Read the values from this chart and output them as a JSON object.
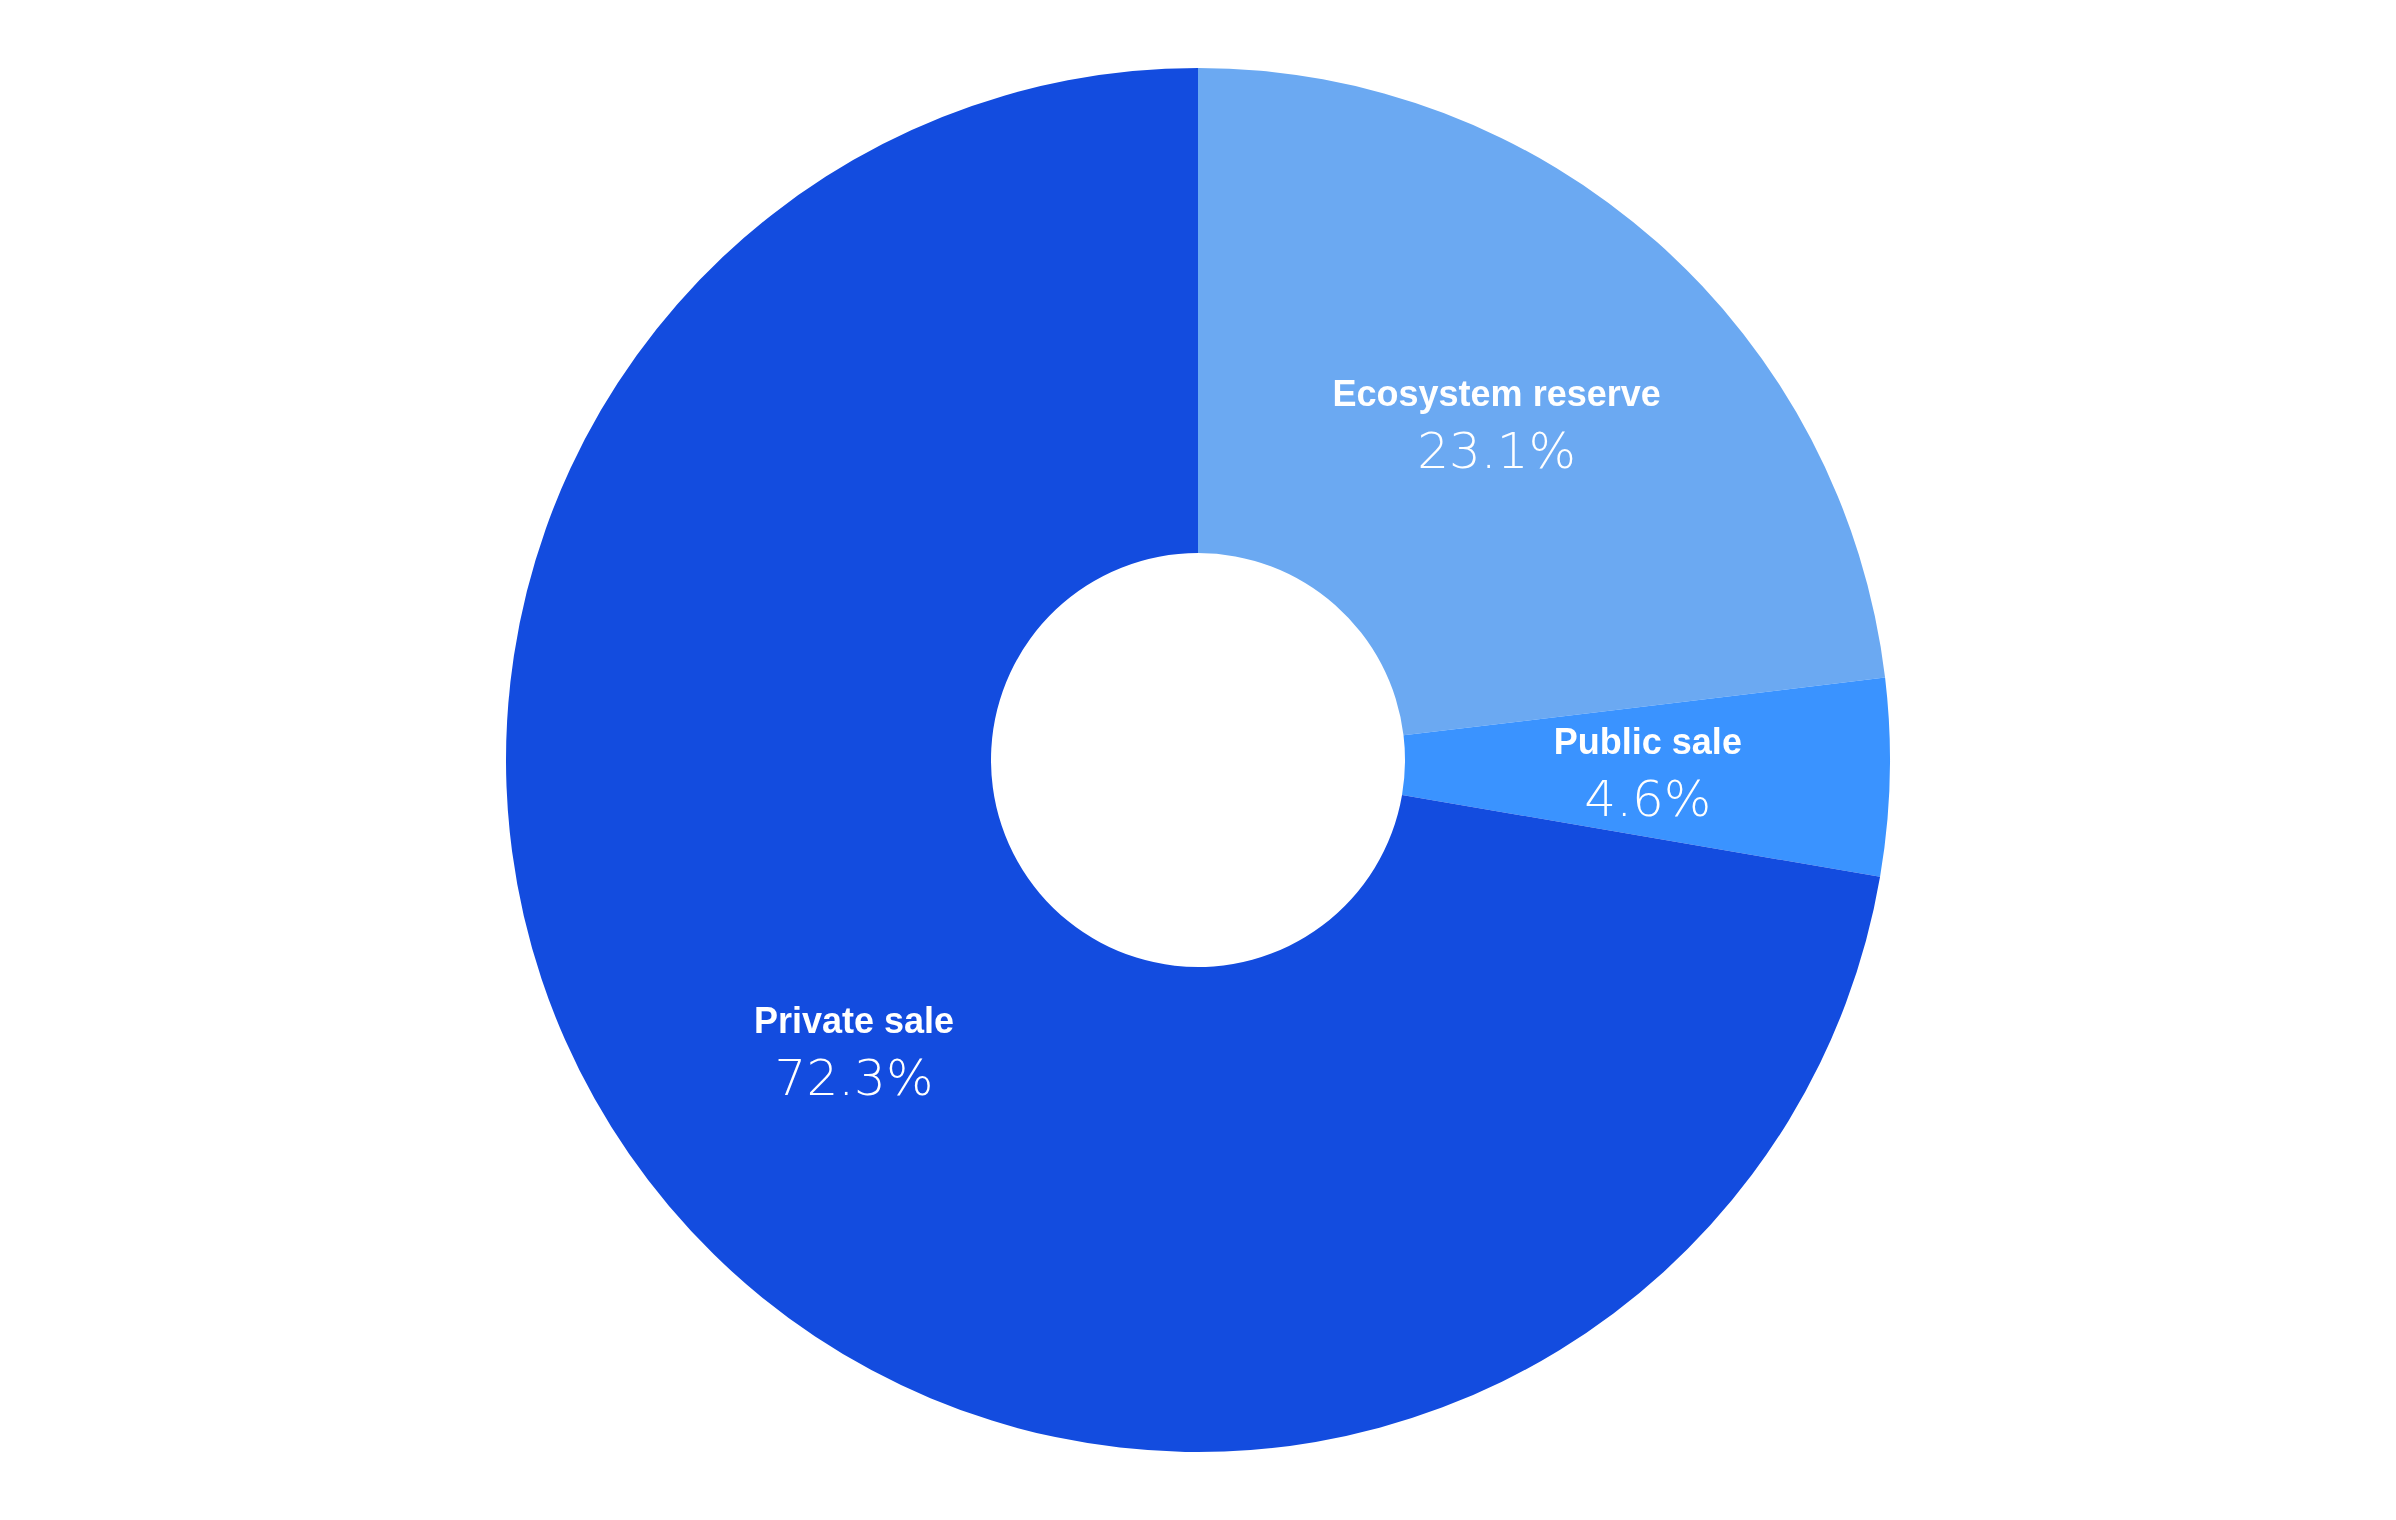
{
  "chart_data": {
    "type": "donut",
    "categories": [
      "Ecosystem reserve",
      "Public sale",
      "Private sale"
    ],
    "values": [
      23.1,
      4.6,
      72.3
    ],
    "colors": [
      "#6ba9f2",
      "#3a93ff",
      "#134cdf"
    ],
    "value_labels": [
      "23.1%",
      "4.6%",
      "72.3%"
    ],
    "legend": false
  }
}
